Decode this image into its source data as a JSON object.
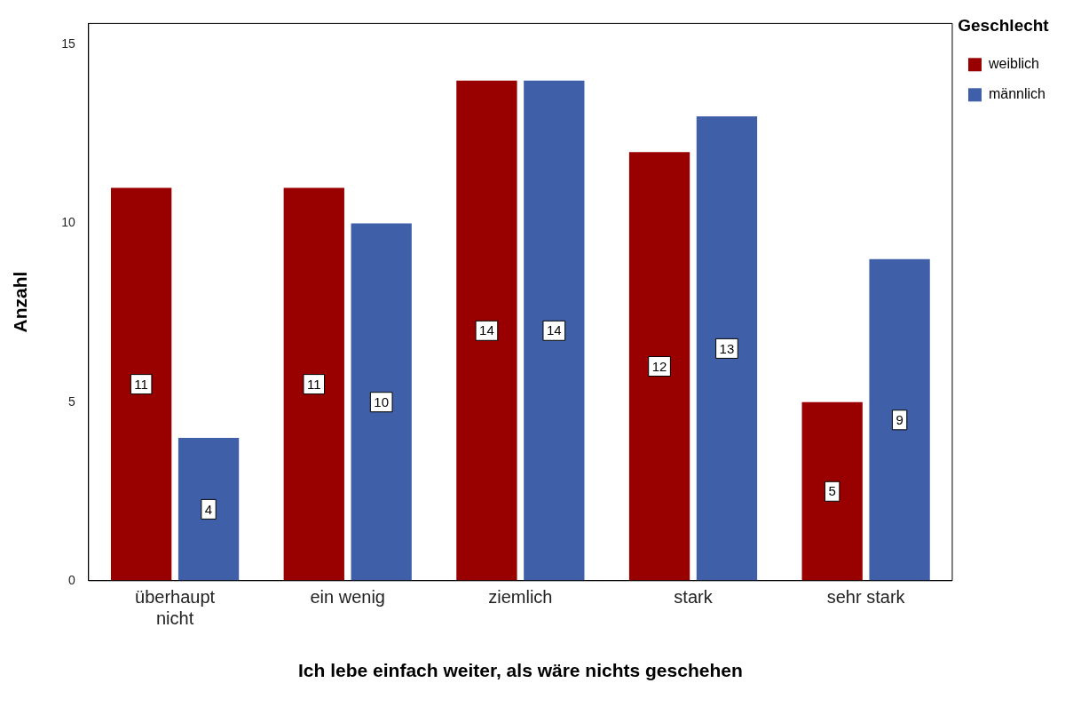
{
  "chart_data": {
    "type": "bar",
    "xlabel": "Ich lebe einfach weiter, als wäre nichts geschehen",
    "ylabel": "Anzahl",
    "legend_title": "Geschlecht",
    "categories": [
      "überhaupt nicht",
      "ein wenig",
      "ziemlich",
      "stark",
      "sehr stark"
    ],
    "series": [
      {
        "name": "weiblich",
        "color": "#990000",
        "values": [
          11,
          11,
          14,
          12,
          5
        ]
      },
      {
        "name": "männlich",
        "color": "#3f5fa8",
        "values": [
          4,
          10,
          14,
          13,
          9
        ]
      }
    ],
    "ylim": [
      0,
      15.6
    ],
    "yticks": [
      0,
      5,
      10,
      15
    ],
    "grid": false,
    "legend": "top right",
    "data_labels": true
  }
}
